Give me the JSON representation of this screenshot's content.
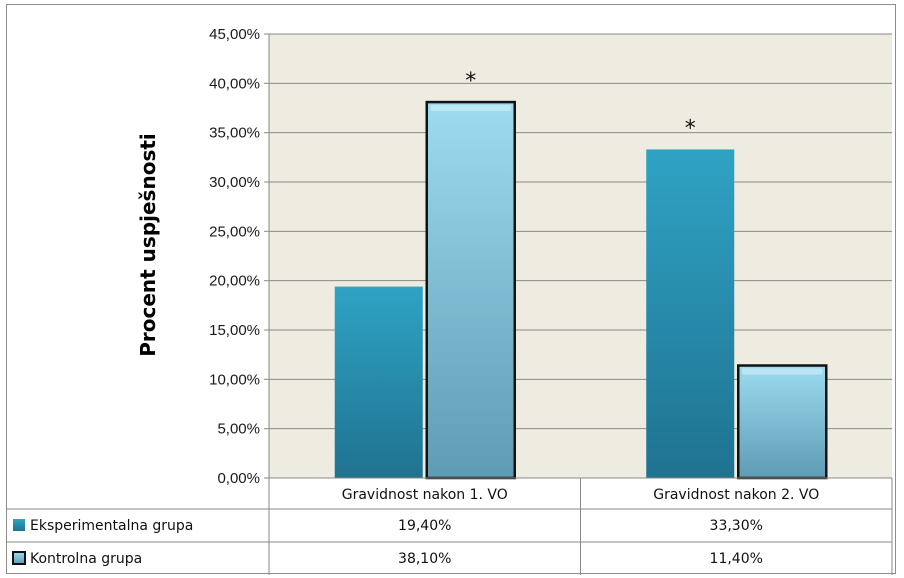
{
  "chart_data": {
    "type": "bar",
    "title": "",
    "xlabel": "",
    "ylabel": "Procent uspješnosti",
    "ylim": [
      0,
      45
    ],
    "ytick_step": 5,
    "ytick_labels": [
      "0,00%",
      "5,00%",
      "10,00%",
      "15,00%",
      "20,00%",
      "25,00%",
      "30,00%",
      "35,00%",
      "40,00%",
      "45,00%"
    ],
    "grid": true,
    "categories": [
      "Gravidnost nakon 1. VO",
      "Gravidnost nakon 2. VO"
    ],
    "series": [
      {
        "name": "Eksperimentalna grupa",
        "values": [
          19.4,
          33.3
        ],
        "labels": [
          "19,40%",
          "33,30%"
        ],
        "color": "#2e9dbd",
        "annotations": [
          "",
          "*"
        ]
      },
      {
        "name": "Kontrolna grupa",
        "values": [
          38.1,
          11.4
        ],
        "labels": [
          "38,10%",
          "11,40%"
        ],
        "color": "#8fd3ea",
        "annotations": [
          "*",
          ""
        ]
      }
    ],
    "legend_placement": "data-table",
    "plot_background": "#eeebe0"
  }
}
